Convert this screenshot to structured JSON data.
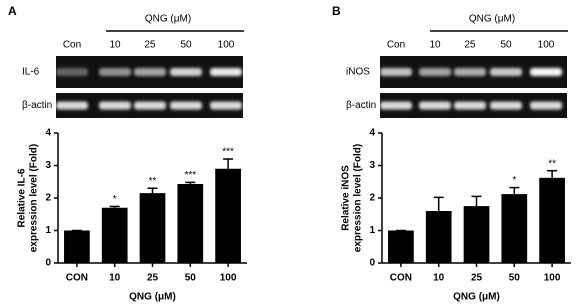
{
  "chart_data": [
    {
      "type": "bar",
      "panel": "A",
      "categories": [
        "CON",
        "10",
        "25",
        "50",
        "100"
      ],
      "values": [
        1.0,
        1.7,
        2.15,
        2.43,
        2.9
      ],
      "errors": [
        0,
        0.04,
        0.15,
        0.05,
        0.3
      ],
      "annotations": [
        null,
        "*",
        "**",
        "***",
        "***"
      ],
      "color": "#000000",
      "ylabel": [
        "Relative IL-6",
        "expression level (Fold)"
      ],
      "xlabel": "QNG (μM)",
      "ylim": [
        0,
        4
      ],
      "yticks": [
        0,
        1,
        2,
        3,
        4
      ]
    },
    {
      "type": "bar",
      "panel": "B",
      "categories": [
        "CON",
        "10",
        "25",
        "50",
        "100"
      ],
      "values": [
        1.0,
        1.6,
        1.75,
        2.12,
        2.62
      ],
      "errors": [
        0,
        0.42,
        0.3,
        0.2,
        0.22
      ],
      "annotations": [
        null,
        null,
        null,
        "*",
        "**"
      ],
      "color": "#000000",
      "ylabel": [
        "Relative iNOS",
        "expression level (Fold)"
      ],
      "xlabel": "QNG (μM)",
      "ylim": [
        0,
        4
      ],
      "yticks": [
        0,
        1,
        2,
        3,
        4
      ]
    }
  ],
  "gels": [
    {
      "treatment": "QNG (μM)",
      "lanes": [
        "Con",
        "10",
        "25",
        "50",
        "100"
      ],
      "rows": [
        "IL-6",
        "β-actin"
      ]
    },
    {
      "treatment": "QNG (μM)",
      "lanes": [
        "Con",
        "10",
        "25",
        "50",
        "100"
      ],
      "rows": [
        "iNOS",
        "β-actin"
      ]
    }
  ]
}
